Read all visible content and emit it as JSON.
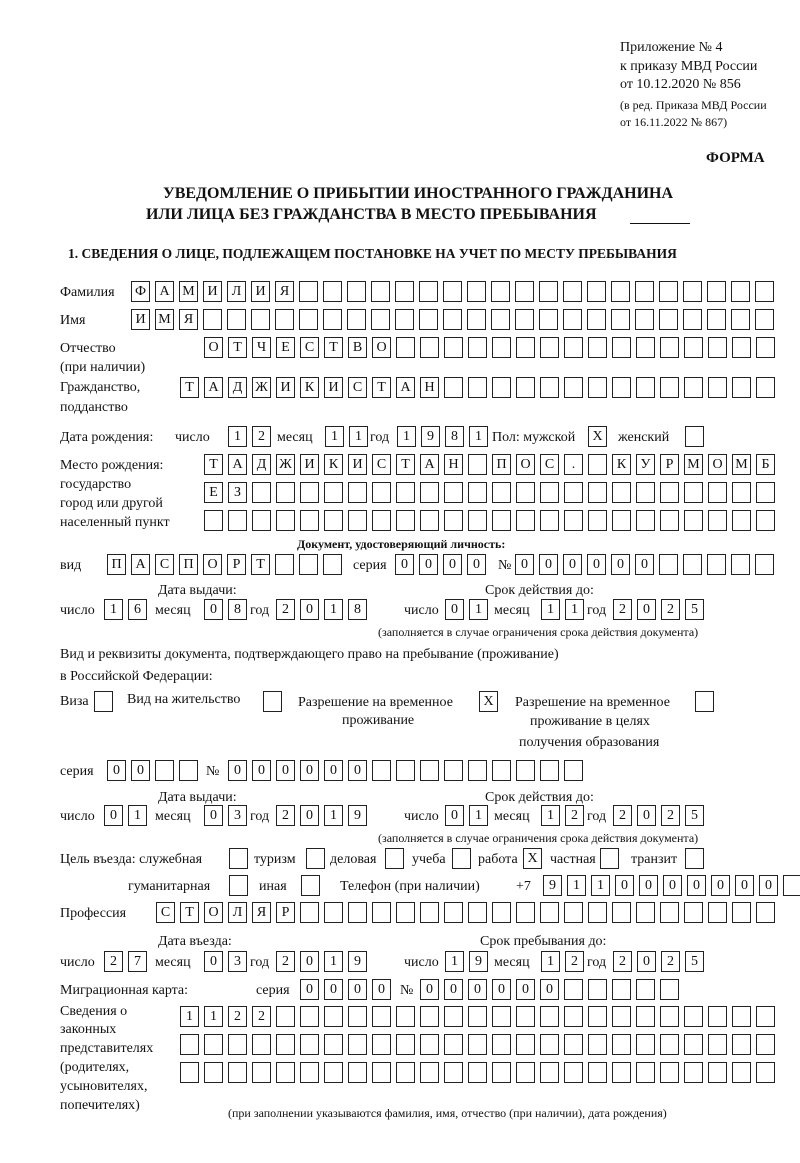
{
  "header": {
    "appendix": [
      "Приложение № 4",
      "к приказу МВД России",
      "от 10.12.2020 № 856"
    ],
    "edition": [
      "(в ред. Приказа МВД России",
      "от 16.11.2022 № 867)"
    ],
    "form_label": "ФОРМА",
    "title_line1": "УВЕДОМЛЕНИЕ О ПРИБЫТИИ ИНОСТРАННОГО ГРАЖДАНИНА",
    "title_line2": "ИЛИ ЛИЦА БЕЗ ГРАЖДАНСТВА В МЕСТО ПРЕБЫВАНИЯ",
    "section1": "1. СВЕДЕНИЯ О ЛИЦЕ, ПОДЛЕЖАЩЕМ ПОСТАНОВКЕ НА УЧЕТ ПО МЕСТУ ПРЕБЫВАНИЯ"
  },
  "labels": {
    "surname": "Фамилия",
    "name": "Имя",
    "patronymic": "Отчество",
    "patronymic_note": "(при наличии)",
    "citizenship": "Гражданство,",
    "citizenship2": "подданство",
    "birth_date": "Дата рождения:",
    "day": "число",
    "month": "месяц",
    "year": "год",
    "sex": "Пол: мужской",
    "female": "женский",
    "birthplace": [
      "Место рождения:",
      "государство",
      "город или другой",
      "населенный пункт"
    ],
    "id_doc": "Документ, удостоверяющий личность:",
    "kind": "вид",
    "series": "серия",
    "number": "№",
    "issue_date": "Дата выдачи:",
    "valid_until": "Срок действия до:",
    "validity_note": "(заполняется в случае ограничения срока действия документа)",
    "permit_doc1": "Вид и реквизиты документа, подтверждающего право на пребывание (проживание)",
    "permit_doc2": "в Российской Федерации:",
    "visa": "Виза",
    "residence": "Вид на жительство",
    "temp_res1": "Разрешение на временное",
    "temp_res2": "проживание",
    "temp_edu1": "Разрешение на временное",
    "temp_edu2": "проживание в целях",
    "temp_edu3": "получения образования",
    "purpose": "Цель въезда: служебная",
    "tourism": "туризм",
    "business": "деловая",
    "study": "учеба",
    "work": "работа",
    "private": "частная",
    "transit": "транзит",
    "humanitarian": "гуманитарная",
    "other": "иная",
    "phone": "Телефон (при наличии)",
    "phone_prefix": "+7",
    "profession": "Профессия",
    "entry_date": "Дата въезда:",
    "stay_until": "Срок пребывания до:",
    "migration_card": "Миграционная карта:",
    "reps": [
      "Сведения о",
      "законных",
      "представителях",
      "(родителях,",
      "усыновителях,",
      "попечителях)"
    ],
    "reps_note": "(при заполнении указываются фамилия, имя, отчество (при наличии), дата рождения)"
  },
  "fields": {
    "surname": {
      "value": "ФАМИЛИЯ",
      "cells": 27
    },
    "name": {
      "value": "ИМЯ",
      "cells": 27
    },
    "patronymic": {
      "value": "ОТЧЕСТВО",
      "cells": 24
    },
    "citizenship": {
      "value": "ТАДЖИКИСТАН",
      "cells": 25
    },
    "birth_day": {
      "value": "12",
      "cells": 2
    },
    "birth_month": {
      "value": "11",
      "cells": 2
    },
    "birth_year": {
      "value": "1981",
      "cells": 4
    },
    "sex_male": {
      "value": "X",
      "cells": 1
    },
    "sex_female": {
      "value": "",
      "cells": 1
    },
    "birthplace1": {
      "value": "ТАДЖИКИСТАН ПОС. КУРМОМБ",
      "cells": 24
    },
    "birthplace2": {
      "value": "ЕЗ",
      "cells": 24
    },
    "birthplace3": {
      "value": "",
      "cells": 24
    },
    "doc_kind": {
      "value": "ПАСПОРТ",
      "cells": 10
    },
    "doc_series": {
      "value": "0000",
      "cells": 4
    },
    "doc_number": {
      "value": "000000",
      "cells": 11
    },
    "doc_issue_day": {
      "value": "16",
      "cells": 2
    },
    "doc_issue_month": {
      "value": "08",
      "cells": 2
    },
    "doc_issue_year": {
      "value": "2018",
      "cells": 4
    },
    "doc_valid_day": {
      "value": "01",
      "cells": 2
    },
    "doc_valid_month": {
      "value": "11",
      "cells": 2
    },
    "doc_valid_year": {
      "value": "2025",
      "cells": 4
    },
    "visa": {
      "value": "",
      "cells": 1
    },
    "residence": {
      "value": "",
      "cells": 1
    },
    "temp_res": {
      "value": "X",
      "cells": 1
    },
    "temp_edu": {
      "value": "",
      "cells": 1
    },
    "permit_series": {
      "value": "00",
      "cells": 4
    },
    "permit_number": {
      "value": "000000",
      "cells": 15
    },
    "permit_issue_day": {
      "value": "01",
      "cells": 2
    },
    "permit_issue_month": {
      "value": "03",
      "cells": 2
    },
    "permit_issue_year": {
      "value": "2019",
      "cells": 4
    },
    "permit_valid_day": {
      "value": "01",
      "cells": 2
    },
    "permit_valid_month": {
      "value": "12",
      "cells": 2
    },
    "permit_valid_year": {
      "value": "2025",
      "cells": 4
    },
    "p_service": {
      "value": "",
      "cells": 1
    },
    "p_tourism": {
      "value": "",
      "cells": 1
    },
    "p_business": {
      "value": "",
      "cells": 1
    },
    "p_study": {
      "value": "",
      "cells": 1
    },
    "p_work": {
      "value": "X",
      "cells": 1
    },
    "p_private": {
      "value": "",
      "cells": 1
    },
    "p_transit": {
      "value": "",
      "cells": 1
    },
    "p_humanitarian": {
      "value": "",
      "cells": 1
    },
    "p_other": {
      "value": "",
      "cells": 1
    },
    "phone": {
      "value": "9110000000",
      "cells": 11
    },
    "profession": {
      "value": "СТОЛЯР",
      "cells": 26
    },
    "entry_day": {
      "value": "27",
      "cells": 2
    },
    "entry_month": {
      "value": "03",
      "cells": 2
    },
    "entry_year": {
      "value": "2019",
      "cells": 4
    },
    "stay_day": {
      "value": "19",
      "cells": 2
    },
    "stay_month": {
      "value": "12",
      "cells": 2
    },
    "stay_year": {
      "value": "2025",
      "cells": 4
    },
    "mc_series": {
      "value": "0000",
      "cells": 4
    },
    "mc_number": {
      "value": "000000",
      "cells": 11
    },
    "reps1": {
      "value": "1122",
      "cells": 25
    },
    "reps2": {
      "value": "",
      "cells": 25
    },
    "reps3": {
      "value": "",
      "cells": 25
    }
  }
}
